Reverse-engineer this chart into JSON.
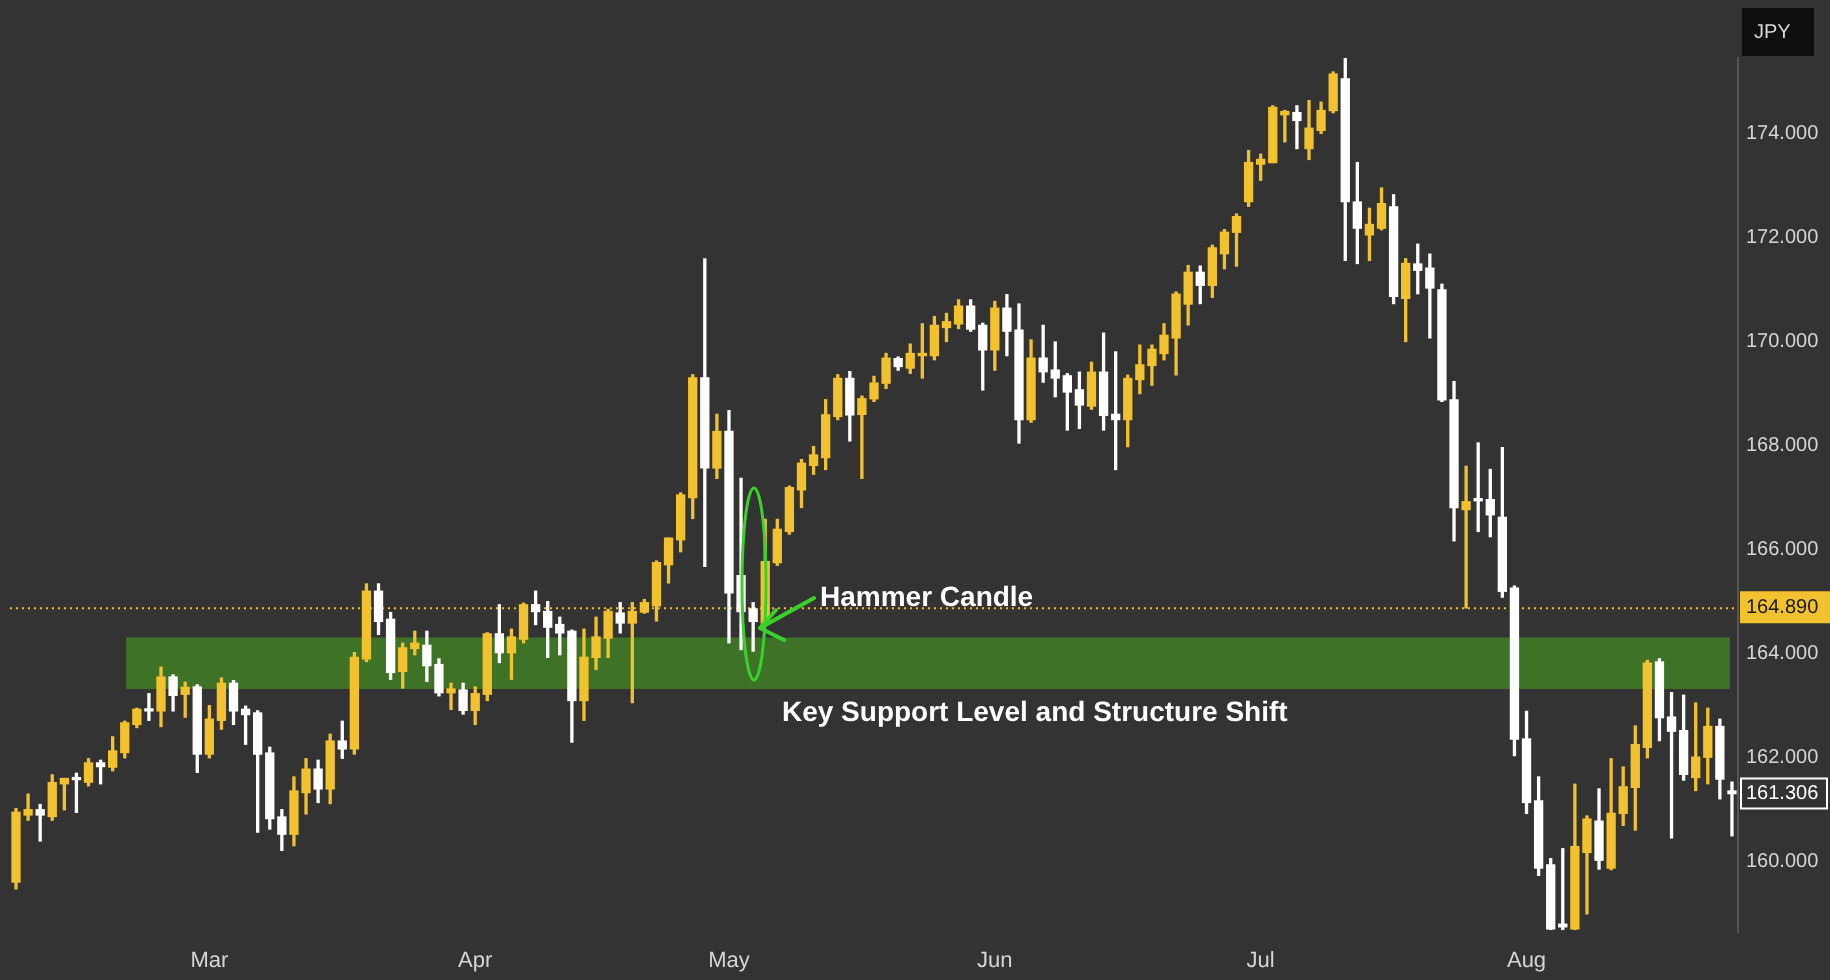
{
  "chart_data": {
    "type": "candlestick",
    "ylabel": "JPY",
    "categories": [
      null,
      null,
      null,
      null,
      null,
      null,
      null,
      null,
      null,
      null,
      null,
      null,
      null,
      null,
      null,
      null,
      "Mar",
      null,
      null,
      null,
      null,
      null,
      null,
      null,
      null,
      null,
      null,
      null,
      null,
      null,
      null,
      null,
      null,
      null,
      null,
      null,
      null,
      null,
      "Apr",
      null,
      null,
      null,
      null,
      null,
      null,
      null,
      null,
      null,
      null,
      null,
      null,
      null,
      null,
      null,
      null,
      null,
      null,
      null,
      null,
      "May",
      null,
      null,
      null,
      null,
      null,
      null,
      null,
      null,
      null,
      null,
      null,
      null,
      null,
      null,
      null,
      null,
      null,
      null,
      null,
      null,
      null,
      "Jun",
      null,
      null,
      null,
      null,
      null,
      null,
      null,
      null,
      null,
      null,
      null,
      null,
      null,
      null,
      null,
      null,
      null,
      null,
      null,
      null,
      null,
      "Jul",
      null,
      null,
      null,
      null,
      null,
      null,
      null,
      null,
      null,
      null,
      null,
      null,
      null,
      null,
      null,
      null,
      null,
      null,
      null,
      null,
      null,
      "Aug",
      null,
      null,
      null,
      null,
      null,
      null,
      null,
      null,
      null,
      null,
      null,
      null,
      null,
      null,
      null,
      null,
      null
    ],
    "ohlc": [
      [
        159.61,
        161.02,
        159.48,
        160.95
      ],
      [
        160.9,
        161.3,
        160.8,
        161.0
      ],
      [
        161.0,
        161.1,
        160.4,
        160.9
      ],
      [
        160.87,
        161.67,
        160.8,
        161.52
      ],
      [
        161.5,
        161.6,
        161.0,
        161.6
      ],
      [
        161.6,
        161.7,
        160.95,
        161.58
      ],
      [
        161.53,
        161.98,
        161.46,
        161.9
      ],
      [
        161.9,
        161.95,
        161.5,
        161.83
      ],
      [
        161.82,
        162.4,
        161.75,
        162.13
      ],
      [
        162.1,
        162.7,
        162.0,
        162.67
      ],
      [
        162.64,
        162.95,
        162.58,
        162.93
      ],
      [
        162.92,
        163.23,
        162.72,
        162.9
      ],
      [
        162.9,
        163.74,
        162.6,
        163.55
      ],
      [
        163.55,
        163.59,
        162.9,
        163.2
      ],
      [
        163.22,
        163.45,
        162.78,
        163.35
      ],
      [
        163.36,
        163.4,
        161.72,
        162.07
      ],
      [
        162.07,
        163.0,
        162.0,
        162.74
      ],
      [
        162.72,
        163.53,
        162.55,
        163.43
      ],
      [
        163.43,
        163.48,
        162.64,
        162.9
      ],
      [
        162.93,
        162.99,
        162.26,
        162.83
      ],
      [
        162.86,
        162.9,
        160.57,
        162.07
      ],
      [
        162.09,
        162.2,
        160.63,
        160.83
      ],
      [
        160.86,
        161.0,
        160.22,
        160.53
      ],
      [
        160.53,
        161.63,
        160.31,
        161.36
      ],
      [
        161.33,
        161.98,
        160.92,
        161.78
      ],
      [
        161.78,
        161.95,
        161.14,
        161.4
      ],
      [
        161.4,
        162.45,
        161.12,
        162.32
      ],
      [
        162.32,
        162.7,
        161.99,
        162.17
      ],
      [
        162.17,
        164.02,
        162.07,
        163.93
      ],
      [
        163.9,
        165.34,
        163.85,
        165.2
      ],
      [
        165.2,
        165.34,
        164.37,
        164.62
      ],
      [
        164.66,
        164.79,
        163.51,
        163.64
      ],
      [
        163.66,
        164.2,
        163.34,
        164.11
      ],
      [
        164.1,
        164.43,
        163.98,
        164.2
      ],
      [
        164.16,
        164.43,
        163.47,
        163.77
      ],
      [
        163.79,
        163.9,
        163.19,
        163.25
      ],
      [
        163.25,
        163.43,
        162.93,
        163.32
      ],
      [
        163.3,
        163.43,
        162.84,
        162.91
      ],
      [
        162.91,
        163.36,
        162.64,
        163.23
      ],
      [
        163.22,
        164.4,
        163.1,
        164.38
      ],
      [
        164.38,
        164.94,
        163.83,
        164.02
      ],
      [
        164.02,
        164.47,
        163.51,
        164.32
      ],
      [
        164.28,
        164.97,
        164.21,
        164.94
      ],
      [
        164.94,
        165.2,
        164.56,
        164.81
      ],
      [
        164.81,
        165.0,
        163.93,
        164.51
      ],
      [
        164.56,
        164.7,
        163.98,
        164.4
      ],
      [
        164.43,
        164.45,
        162.3,
        163.1
      ],
      [
        163.1,
        164.47,
        162.72,
        163.93
      ],
      [
        163.93,
        164.7,
        163.7,
        164.32
      ],
      [
        164.3,
        164.85,
        163.93,
        164.81
      ],
      [
        164.78,
        164.98,
        164.4,
        164.59
      ],
      [
        164.59,
        164.98,
        163.06,
        164.81
      ],
      [
        164.8,
        165.04,
        164.78,
        164.98
      ],
      [
        164.92,
        165.78,
        164.63,
        165.75
      ],
      [
        165.71,
        166.22,
        165.36,
        166.22
      ],
      [
        166.19,
        167.09,
        165.96,
        167.05
      ],
      [
        167.0,
        169.36,
        166.6,
        169.3
      ],
      [
        169.3,
        171.59,
        165.68,
        167.57
      ],
      [
        167.57,
        168.6,
        167.37,
        168.27
      ],
      [
        168.27,
        168.67,
        164.21,
        165.17
      ],
      [
        165.5,
        167.37,
        164.08,
        164.81
      ],
      [
        164.86,
        164.98,
        164.05,
        164.62
      ],
      [
        164.59,
        166.58,
        164.55,
        165.77
      ],
      [
        165.75,
        166.58,
        165.7,
        166.39
      ],
      [
        166.35,
        167.22,
        166.3,
        167.19
      ],
      [
        167.15,
        167.73,
        166.81,
        167.66
      ],
      [
        167.62,
        167.98,
        167.45,
        167.82
      ],
      [
        167.77,
        168.88,
        167.54,
        168.59
      ],
      [
        168.56,
        169.36,
        168.5,
        169.29
      ],
      [
        169.29,
        169.42,
        168.09,
        168.59
      ],
      [
        168.6,
        168.95,
        167.37,
        168.9
      ],
      [
        168.9,
        169.33,
        168.85,
        169.2
      ],
      [
        169.2,
        169.77,
        169.1,
        169.68
      ],
      [
        169.67,
        169.7,
        169.45,
        169.52
      ],
      [
        169.49,
        169.95,
        169.39,
        169.77
      ],
      [
        169.73,
        170.34,
        169.3,
        169.77
      ],
      [
        169.73,
        170.48,
        169.65,
        170.31
      ],
      [
        170.27,
        170.54,
        170.0,
        170.38
      ],
      [
        170.34,
        170.8,
        170.25,
        170.68
      ],
      [
        170.68,
        170.8,
        170.2,
        170.24
      ],
      [
        170.31,
        170.35,
        169.07,
        169.84
      ],
      [
        169.84,
        170.77,
        169.45,
        170.64
      ],
      [
        170.64,
        170.9,
        169.73,
        170.2
      ],
      [
        170.22,
        170.72,
        168.05,
        168.5
      ],
      [
        168.5,
        170.03,
        168.45,
        169.68
      ],
      [
        169.68,
        170.31,
        169.22,
        169.42
      ],
      [
        169.45,
        169.99,
        168.94,
        169.3
      ],
      [
        169.34,
        169.38,
        168.3,
        169.03
      ],
      [
        169.07,
        169.41,
        168.33,
        168.78
      ],
      [
        168.76,
        169.6,
        168.7,
        169.41
      ],
      [
        169.41,
        170.16,
        168.3,
        168.58
      ],
      [
        168.6,
        169.8,
        167.54,
        168.5
      ],
      [
        168.5,
        169.35,
        167.98,
        169.29
      ],
      [
        169.27,
        169.93,
        169.0,
        169.55
      ],
      [
        169.54,
        169.93,
        169.16,
        169.85
      ],
      [
        169.77,
        170.34,
        169.65,
        170.12
      ],
      [
        170.07,
        170.95,
        169.36,
        170.91
      ],
      [
        170.72,
        171.46,
        170.32,
        171.33
      ],
      [
        171.33,
        171.45,
        170.73,
        171.08
      ],
      [
        171.08,
        171.85,
        170.85,
        171.8
      ],
      [
        171.69,
        172.15,
        171.4,
        172.1
      ],
      [
        172.1,
        172.45,
        171.45,
        172.4
      ],
      [
        172.69,
        173.67,
        172.6,
        173.44
      ],
      [
        173.41,
        173.6,
        173.1,
        173.5
      ],
      [
        173.44,
        174.53,
        173.44,
        174.5
      ],
      [
        174.36,
        174.44,
        173.84,
        174.42
      ],
      [
        174.4,
        174.53,
        173.71,
        174.25
      ],
      [
        173.71,
        174.63,
        173.5,
        174.1
      ],
      [
        174.06,
        174.6,
        174.0,
        174.44
      ],
      [
        174.44,
        175.18,
        174.4,
        175.14
      ],
      [
        175.05,
        175.44,
        171.56,
        172.69
      ],
      [
        172.68,
        173.44,
        171.5,
        172.18
      ],
      [
        172.05,
        172.56,
        171.56,
        172.25
      ],
      [
        172.18,
        172.95,
        172.15,
        172.65
      ],
      [
        172.59,
        172.82,
        170.73,
        170.87
      ],
      [
        170.83,
        171.59,
        170.0,
        171.5
      ],
      [
        171.49,
        171.87,
        170.92,
        171.37
      ],
      [
        171.41,
        171.68,
        170.07,
        171.03
      ],
      [
        170.99,
        171.1,
        168.85,
        168.88
      ],
      [
        168.88,
        169.23,
        166.17,
        166.81
      ],
      [
        166.77,
        167.6,
        164.88,
        166.92
      ],
      [
        166.96,
        168.05,
        166.35,
        166.94
      ],
      [
        166.96,
        167.54,
        166.25,
        166.67
      ],
      [
        166.62,
        167.96,
        165.09,
        165.2
      ],
      [
        165.26,
        165.3,
        162.04,
        162.36
      ],
      [
        162.36,
        162.89,
        160.93,
        161.14
      ],
      [
        161.17,
        161.63,
        159.74,
        159.88
      ],
      [
        159.94,
        160.06,
        158.7,
        158.71
      ],
      [
        158.8,
        160.25,
        158.7,
        158.75
      ],
      [
        158.71,
        161.49,
        158.7,
        160.29
      ],
      [
        160.18,
        160.88,
        159.0,
        160.82
      ],
      [
        160.78,
        161.4,
        159.86,
        160.03
      ],
      [
        159.88,
        161.98,
        159.85,
        160.93
      ],
      [
        160.93,
        161.82,
        160.7,
        161.44
      ],
      [
        161.43,
        162.61,
        160.61,
        162.25
      ],
      [
        162.2,
        163.87,
        162.0,
        163.82
      ],
      [
        163.84,
        163.9,
        162.33,
        162.77
      ],
      [
        162.78,
        163.25,
        160.46,
        162.51
      ],
      [
        162.52,
        163.2,
        161.57,
        161.68
      ],
      [
        161.62,
        163.05,
        161.37,
        162.01
      ],
      [
        162.01,
        162.95,
        161.5,
        162.6
      ],
      [
        162.6,
        162.74,
        161.21,
        161.59
      ],
      [
        161.36,
        161.53,
        160.5,
        161.31
      ]
    ],
    "ylim": [
      158.65,
      175.45
    ],
    "yticks": [
      {
        "value": 160,
        "label": "160.000"
      },
      {
        "value": 162,
        "label": "162.000"
      },
      {
        "value": 164,
        "label": "164.000"
      },
      {
        "value": 166,
        "label": "166.000"
      },
      {
        "value": 168,
        "label": "168.000"
      },
      {
        "value": 170,
        "label": "170.000"
      },
      {
        "value": 172,
        "label": "172.000"
      },
      {
        "value": 174,
        "label": "174.000"
      }
    ],
    "ref_lines": [
      {
        "axis": "y",
        "value": 164.89,
        "label": "164.890",
        "color": "#f2c12e",
        "line_style": "dotted"
      }
    ],
    "bands": [
      {
        "axis": "y",
        "from": 163.32,
        "to": 164.31,
        "label": "Key Support Level and Structure Shift",
        "color": "#3e7327"
      }
    ],
    "annotations": [
      "Hammer Candle",
      "161.306"
    ],
    "grid": false,
    "legend": false
  }
}
